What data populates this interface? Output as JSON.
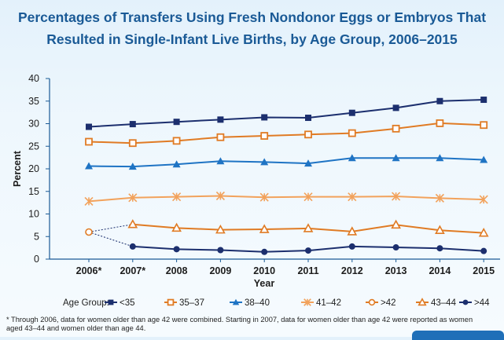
{
  "chart_data": {
    "type": "line",
    "title": [
      "Percentages of Transfers Using Fresh Nondonor Eggs or Embryos That",
      "Resulted in Single-Infant Live Births, by Age Group, 2006–2015"
    ],
    "xlabel": "Year",
    "ylabel": "Percent",
    "categories": [
      "2006*",
      "2007*",
      "2008",
      "2009",
      "2010",
      "2011",
      "2012",
      "2013",
      "2014",
      "2015"
    ],
    "ylim": [
      0,
      40
    ],
    "yticks": [
      0,
      5,
      10,
      15,
      20,
      25,
      30,
      35,
      40
    ],
    "legend_title": "Age Group:",
    "series": [
      {
        "name": "<35",
        "color": "#1c2f6e",
        "marker": "square-filled",
        "values": [
          29.3,
          29.9,
          30.4,
          30.9,
          31.4,
          31.3,
          32.4,
          33.5,
          35.0,
          35.3
        ]
      },
      {
        "name": "35–37",
        "color": "#e07b24",
        "marker": "square-open",
        "values": [
          26.0,
          25.7,
          26.2,
          27.0,
          27.3,
          27.6,
          27.9,
          28.9,
          30.1,
          29.7
        ]
      },
      {
        "name": "38–40",
        "color": "#1f74c4",
        "marker": "triangle-filled",
        "values": [
          20.6,
          20.5,
          21.0,
          21.7,
          21.5,
          21.2,
          22.4,
          22.4,
          22.4,
          22.0
        ]
      },
      {
        "name": "41–42",
        "color": "#f2a25c",
        "marker": "asterisk",
        "values": [
          12.8,
          13.6,
          13.8,
          14.0,
          13.7,
          13.8,
          13.8,
          13.9,
          13.5,
          13.2
        ]
      },
      {
        "name": ">42",
        "color": "#e07b24",
        "marker": "circle-open",
        "values": [
          6.0,
          null,
          null,
          null,
          null,
          null,
          null,
          null,
          null,
          null
        ]
      },
      {
        "name": "43–44",
        "color": "#e07b24",
        "marker": "triangle-open",
        "values": [
          null,
          7.7,
          6.9,
          6.5,
          6.6,
          6.8,
          6.1,
          7.6,
          6.4,
          5.8
        ]
      },
      {
        "name": ">44",
        "color": "#1c2f6e",
        "marker": "circle-filled",
        "values": [
          null,
          2.8,
          2.2,
          2.0,
          1.6,
          1.9,
          2.8,
          2.6,
          2.4,
          1.8
        ]
      }
    ],
    "footnote": "* Through 2006, data for women older than age 42 were combined. Starting in 2007, data for women older than age 42 were reported as women aged 43–44 and women older than age 44."
  },
  "colors": {
    "title": "#1a5a96",
    "axis": "#1a5a96",
    "connector": "#1c2f6e"
  }
}
